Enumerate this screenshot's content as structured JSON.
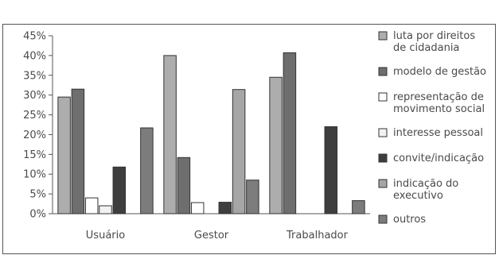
{
  "chart_data": {
    "type": "bar",
    "title": "",
    "xlabel": "",
    "ylabel": "",
    "ylim": [
      0,
      45
    ],
    "yticks": [
      0,
      5,
      10,
      15,
      20,
      25,
      30,
      35,
      40,
      45
    ],
    "ytick_labels": [
      "0%",
      "5%",
      "10%",
      "15%",
      "20%",
      "25%",
      "30%",
      "35%",
      "40%",
      "45%"
    ],
    "grid": false,
    "legend_position": "right",
    "categories": [
      "Usuário",
      "Gestor",
      "Trabalhador"
    ],
    "series": [
      {
        "name": "luta por direitos de cidadania",
        "legend_lines": [
          "luta por direitos",
          "de cidadania"
        ],
        "color": "#adadad",
        "values": [
          29.5,
          40,
          34.5
        ]
      },
      {
        "name": "modelo de gestão",
        "legend_lines": [
          "modelo de gestão"
        ],
        "color": "#6e6e6e",
        "values": [
          31.5,
          14.2,
          40.7
        ]
      },
      {
        "name": "representação de movimento social",
        "legend_lines": [
          "representação de",
          "movimento social"
        ],
        "color": "#ffffff",
        "values": [
          4,
          2.8,
          0
        ]
      },
      {
        "name": "interesse pessoal",
        "legend_lines": [
          "interesse pessoal"
        ],
        "color": "#f2f2f2",
        "values": [
          2,
          0,
          0
        ]
      },
      {
        "name": "convite/indicação",
        "legend_lines": [
          "convite/indicação"
        ],
        "color": "#3e3e3e",
        "values": [
          11.8,
          2.9,
          22
        ]
      },
      {
        "name": "indicação do executivo",
        "legend_lines": [
          "indicação do",
          "executivo"
        ],
        "color": "#a6a6a6",
        "values": [
          0,
          31.4,
          0
        ]
      },
      {
        "name": "outros",
        "legend_lines": [
          "outros"
        ],
        "color": "#7c7c7c",
        "values": [
          21.7,
          8.5,
          3.3
        ]
      }
    ]
  }
}
